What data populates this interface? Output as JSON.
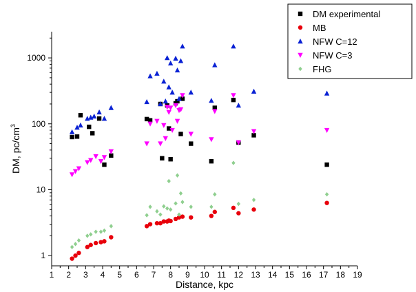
{
  "chart_data": {
    "type": "scatter",
    "title": "",
    "xlabel": "Distance, kpc",
    "ylabel_main": "DM, pc/cm",
    "ylabel_sup": "3",
    "xlim": [
      1,
      19
    ],
    "ylim": [
      0.7,
      2500
    ],
    "yscale": "log",
    "x_ticks": [
      "1",
      "2",
      "3",
      "4",
      "5",
      "6",
      "7",
      "8",
      "9",
      "10",
      "11",
      "12",
      "13",
      "14",
      "15",
      "16",
      "17",
      "18",
      "19"
    ],
    "y_ticks": [
      {
        "value": 1,
        "label": "1"
      },
      {
        "value": 10,
        "label": "10"
      },
      {
        "value": 100,
        "label": "100"
      },
      {
        "value": 1000,
        "label": "1000"
      }
    ],
    "grid": false,
    "legend_position": "top-right",
    "series": [
      {
        "name": "DM experimental",
        "marker": "square",
        "color": "#000000",
        "points": [
          [
            2.2,
            63
          ],
          [
            2.5,
            64
          ],
          [
            2.7,
            135
          ],
          [
            3.2,
            90
          ],
          [
            3.4,
            72
          ],
          [
            3.8,
            120
          ],
          [
            4.1,
            24
          ],
          [
            4.5,
            33
          ],
          [
            6.6,
            118
          ],
          [
            6.8,
            113
          ],
          [
            7.4,
            200
          ],
          [
            7.5,
            30
          ],
          [
            7.8,
            190
          ],
          [
            7.9,
            85
          ],
          [
            8.0,
            29
          ],
          [
            8.3,
            205
          ],
          [
            8.4,
            220
          ],
          [
            8.6,
            70
          ],
          [
            8.7,
            240
          ],
          [
            9.2,
            50
          ],
          [
            10.4,
            27
          ],
          [
            10.6,
            175
          ],
          [
            11.7,
            230
          ],
          [
            12.0,
            52
          ],
          [
            12.9,
            67
          ],
          [
            17.2,
            24
          ]
        ]
      },
      {
        "name": "MB",
        "marker": "circle",
        "color": "#e8000b",
        "points": [
          [
            2.2,
            0.9
          ],
          [
            2.4,
            1.0
          ],
          [
            2.6,
            1.1
          ],
          [
            3.1,
            1.35
          ],
          [
            3.3,
            1.45
          ],
          [
            3.6,
            1.55
          ],
          [
            3.9,
            1.6
          ],
          [
            4.1,
            1.65
          ],
          [
            4.5,
            1.9
          ],
          [
            6.6,
            2.8
          ],
          [
            6.8,
            3.0
          ],
          [
            7.2,
            3.1
          ],
          [
            7.4,
            3.1
          ],
          [
            7.6,
            3.3
          ],
          [
            7.8,
            3.3
          ],
          [
            7.9,
            3.4
          ],
          [
            8.0,
            3.35
          ],
          [
            8.3,
            3.6
          ],
          [
            8.5,
            3.8
          ],
          [
            8.7,
            3.9
          ],
          [
            9.2,
            3.8
          ],
          [
            10.4,
            4.0
          ],
          [
            10.6,
            4.6
          ],
          [
            11.7,
            5.3
          ],
          [
            12.0,
            4.4
          ],
          [
            12.9,
            5.0
          ],
          [
            17.2,
            6.3
          ]
        ]
      },
      {
        "name": "NFW C=12",
        "marker": "triangle-up",
        "color": "#0a22d4",
        "points": [
          [
            2.2,
            75
          ],
          [
            2.5,
            88
          ],
          [
            2.7,
            95
          ],
          [
            3.1,
            120
          ],
          [
            3.3,
            125
          ],
          [
            3.5,
            130
          ],
          [
            3.8,
            150
          ],
          [
            4.1,
            120
          ],
          [
            4.5,
            175
          ],
          [
            6.6,
            215
          ],
          [
            6.8,
            530
          ],
          [
            7.2,
            580
          ],
          [
            7.4,
            200
          ],
          [
            7.6,
            440
          ],
          [
            7.7,
            220
          ],
          [
            7.8,
            1000
          ],
          [
            7.9,
            360
          ],
          [
            8.0,
            830
          ],
          [
            8.1,
            300
          ],
          [
            8.3,
            980
          ],
          [
            8.4,
            650
          ],
          [
            8.5,
            240
          ],
          [
            8.6,
            900
          ],
          [
            8.7,
            1500
          ],
          [
            9.2,
            300
          ],
          [
            10.4,
            225
          ],
          [
            10.6,
            780
          ],
          [
            11.7,
            1500
          ],
          [
            12.0,
            190
          ],
          [
            12.9,
            310
          ],
          [
            17.2,
            290
          ]
        ]
      },
      {
        "name": "NFW C=3",
        "marker": "triangle-down",
        "color": "#ff00ff",
        "points": [
          [
            2.2,
            17
          ],
          [
            2.4,
            19
          ],
          [
            2.6,
            21
          ],
          [
            3.1,
            26
          ],
          [
            3.3,
            28
          ],
          [
            3.6,
            32
          ],
          [
            3.9,
            27
          ],
          [
            4.1,
            31
          ],
          [
            4.5,
            38
          ],
          [
            6.6,
            50
          ],
          [
            6.8,
            100
          ],
          [
            7.2,
            110
          ],
          [
            7.4,
            50
          ],
          [
            7.6,
            95
          ],
          [
            7.7,
            60
          ],
          [
            7.8,
            180
          ],
          [
            7.9,
            150
          ],
          [
            8.0,
            175
          ],
          [
            8.1,
            80
          ],
          [
            8.3,
            190
          ],
          [
            8.4,
            110
          ],
          [
            8.5,
            160
          ],
          [
            8.6,
            165
          ],
          [
            8.7,
            270
          ],
          [
            9.2,
            70
          ],
          [
            10.4,
            58
          ],
          [
            10.6,
            155
          ],
          [
            11.7,
            270
          ],
          [
            12.0,
            52
          ],
          [
            12.9,
            77
          ],
          [
            17.2,
            80
          ]
        ]
      },
      {
        "name": "FHG",
        "marker": "diamond",
        "color": "#8fcf8f",
        "points": [
          [
            2.2,
            1.35
          ],
          [
            2.4,
            1.5
          ],
          [
            2.6,
            1.7
          ],
          [
            3.1,
            2.0
          ],
          [
            3.3,
            2.1
          ],
          [
            3.6,
            2.3
          ],
          [
            3.9,
            2.3
          ],
          [
            4.1,
            2.4
          ],
          [
            4.5,
            2.8
          ],
          [
            6.6,
            4.1
          ],
          [
            6.8,
            5.5
          ],
          [
            7.2,
            4.7
          ],
          [
            7.4,
            4.2
          ],
          [
            7.6,
            5.6
          ],
          [
            7.8,
            5.2
          ],
          [
            7.9,
            13.5
          ],
          [
            8.0,
            5.0
          ],
          [
            8.3,
            6.2
          ],
          [
            8.4,
            16.5
          ],
          [
            8.5,
            4.2
          ],
          [
            8.6,
            8.8
          ],
          [
            8.7,
            6.5
          ],
          [
            9.2,
            5.5
          ],
          [
            10.4,
            5.5
          ],
          [
            10.6,
            8.5
          ],
          [
            11.7,
            25.5
          ],
          [
            12.0,
            6.1
          ],
          [
            12.9,
            7.0
          ],
          [
            17.2,
            8.5
          ]
        ]
      }
    ]
  }
}
